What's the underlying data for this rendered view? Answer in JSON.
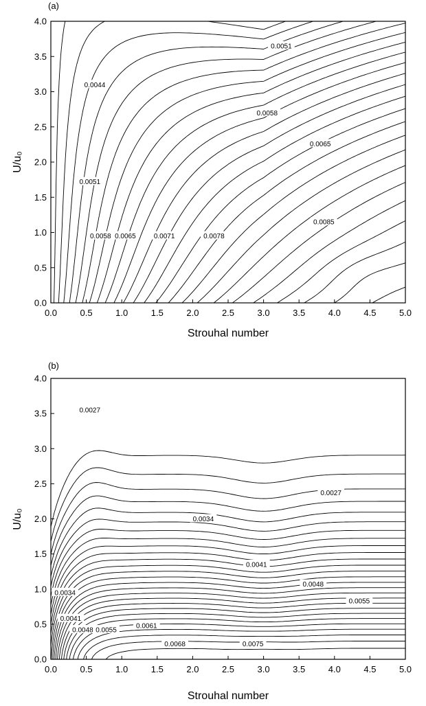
{
  "chart_data": [
    {
      "type": "contour",
      "panel_label": "(a)",
      "xlabel": "Strouhal number",
      "ylabel": "U/u₀",
      "xlim": [
        0,
        5
      ],
      "ylim": [
        0,
        4
      ],
      "x_ticks": [
        "0.0",
        "0.5",
        "1.0",
        "1.5",
        "2.0",
        "2.5",
        "3.0",
        "3.5",
        "4.0",
        "4.5",
        "5.0"
      ],
      "y_ticks": [
        "0.0",
        "0.5",
        "1.0",
        "1.5",
        "2.0",
        "2.5",
        "3.0",
        "3.5",
        "4.0"
      ],
      "contour_labels": [
        {
          "text": "0.0044",
          "x": 0.62,
          "y": 3.1
        },
        {
          "text": "0.0051",
          "x": 3.25,
          "y": 3.65
        },
        {
          "text": "0.0058",
          "x": 3.05,
          "y": 2.7
        },
        {
          "text": "0.0065",
          "x": 3.8,
          "y": 2.26
        },
        {
          "text": "0.0051",
          "x": 0.55,
          "y": 1.72
        },
        {
          "text": "0.0058",
          "x": 0.7,
          "y": 0.95
        },
        {
          "text": "0.0065",
          "x": 1.05,
          "y": 0.95
        },
        {
          "text": "0.0071",
          "x": 1.6,
          "y": 0.95
        },
        {
          "text": "0.0078",
          "x": 2.3,
          "y": 0.95
        },
        {
          "text": "0.0085",
          "x": 3.85,
          "y": 1.15
        }
      ],
      "grid": false,
      "legend": "none"
    },
    {
      "type": "contour",
      "panel_label": "(b)",
      "xlabel": "Strouhal number",
      "ylabel": "U/u₀",
      "xlim": [
        0,
        5
      ],
      "ylim": [
        0,
        4
      ],
      "x_ticks": [
        "0.0",
        "0.5",
        "1.0",
        "1.5",
        "2.0",
        "2.5",
        "3.0",
        "3.5",
        "4.0",
        "4.5",
        "5.0"
      ],
      "y_ticks": [
        "0.0",
        "0.5",
        "1.0",
        "1.5",
        "2.0",
        "2.5",
        "3.0",
        "3.5",
        "4.0"
      ],
      "contour_labels": [
        {
          "text": "0.0027",
          "x": 0.55,
          "y": 3.55
        },
        {
          "text": "0.0027",
          "x": 3.95,
          "y": 2.37
        },
        {
          "text": "0.0034",
          "x": 2.15,
          "y": 2.0
        },
        {
          "text": "0.0041",
          "x": 2.9,
          "y": 1.35
        },
        {
          "text": "0.0048",
          "x": 3.7,
          "y": 1.07
        },
        {
          "text": "0.0055",
          "x": 4.35,
          "y": 0.83
        },
        {
          "text": "0.0034",
          "x": 0.2,
          "y": 0.95
        },
        {
          "text": "0.0041",
          "x": 0.28,
          "y": 0.58
        },
        {
          "text": "0.0048",
          "x": 0.45,
          "y": 0.42
        },
        {
          "text": "0.0055",
          "x": 0.78,
          "y": 0.42
        },
        {
          "text": "0.0061",
          "x": 1.35,
          "y": 0.48
        },
        {
          "text": "0.0068",
          "x": 1.75,
          "y": 0.22
        },
        {
          "text": "0.0075",
          "x": 2.85,
          "y": 0.22
        }
      ],
      "grid": false,
      "legend": "none"
    }
  ]
}
